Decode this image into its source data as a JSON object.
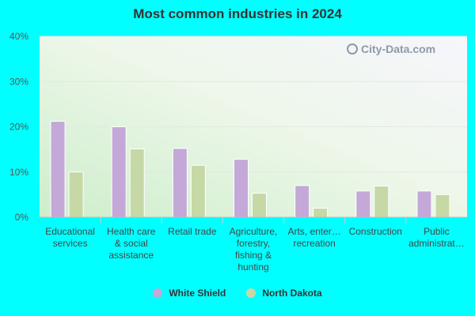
{
  "chart_data": {
    "type": "bar",
    "title": "Most common industries in 2024",
    "categories": [
      [
        "Educational",
        "services"
      ],
      [
        "Health care",
        "& social",
        "assistance"
      ],
      [
        "Retail trade"
      ],
      [
        "Agriculture,",
        "forestry,",
        "fishing &",
        "hunting"
      ],
      [
        "Arts, enter…",
        "recreation"
      ],
      [
        "Construction"
      ],
      [
        "Public",
        "administrat…"
      ]
    ],
    "series": [
      {
        "name": "White Shield",
        "color": "#c3a8d8",
        "values": [
          21.2,
          20.0,
          15.2,
          12.8,
          7.0,
          5.8,
          5.8
        ]
      },
      {
        "name": "North Dakota",
        "color": "#c6d8a6",
        "values": [
          10.0,
          15.1,
          11.5,
          5.3,
          2.0,
          6.9,
          5.0
        ]
      }
    ],
    "ylim": [
      0,
      40
    ],
    "yticks": [
      "0%",
      "10%",
      "20%",
      "30%",
      "40%"
    ],
    "grid": true,
    "legend_position": "bottom"
  },
  "watermark": "City-Data.com"
}
